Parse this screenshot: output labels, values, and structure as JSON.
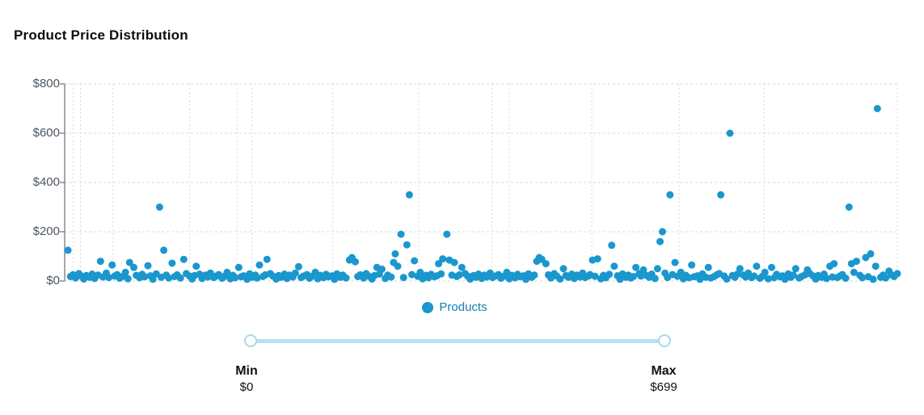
{
  "title": "Product Price Distribution",
  "legend": {
    "label": "Products"
  },
  "slider": {
    "min_label": "Min",
    "min_value": "$0",
    "max_label": "Max",
    "max_value": "$699"
  },
  "colors": {
    "point": "#1a97cd",
    "legend_text": "#147fb5",
    "slider_track": "#b7e1f2",
    "slider_handle_border": "#a9d9ec",
    "axis_line": "#858c92",
    "grid_line": "#d9d9d9",
    "tick_label": "#4a5560",
    "title_text": "#0d0d0d"
  },
  "chart_data": {
    "type": "scatter",
    "title": "Product Price Distribution",
    "series_name": "Products",
    "xlabel": "",
    "ylabel": "",
    "ylim": [
      0,
      800
    ],
    "y_tick_labels": [
      "$800",
      "$600",
      "$400",
      "$200",
      "$0"
    ],
    "y_tick_values": [
      800,
      600,
      400,
      200,
      0
    ],
    "legend_position": "bottom-center",
    "grid": true,
    "x_unit": "percent_of_plot_width",
    "x_gridlines_percent": [
      1.0,
      1.9,
      5.8,
      15.0,
      20.7,
      22.5,
      32.2,
      42.5,
      51.3,
      53.4,
      63.3,
      73.8,
      84.0,
      100.0
    ],
    "points": [
      [
        0.4,
        125
      ],
      [
        0.7,
        18
      ],
      [
        1.0,
        25
      ],
      [
        1.3,
        12
      ],
      [
        1.7,
        30
      ],
      [
        2.0,
        20
      ],
      [
        2.3,
        8
      ],
      [
        2.6,
        22
      ],
      [
        3.0,
        15
      ],
      [
        3.3,
        28
      ],
      [
        3.6,
        10
      ],
      [
        4.0,
        24
      ],
      [
        4.3,
        80
      ],
      [
        4.6,
        16
      ],
      [
        5.0,
        32
      ],
      [
        5.3,
        14
      ],
      [
        5.7,
        65
      ],
      [
        6.0,
        20
      ],
      [
        6.3,
        26
      ],
      [
        6.6,
        11
      ],
      [
        7.0,
        19
      ],
      [
        7.3,
        35
      ],
      [
        7.6,
        9
      ],
      [
        7.8,
        75
      ],
      [
        8.3,
        55
      ],
      [
        8.6,
        23
      ],
      [
        9.0,
        13
      ],
      [
        9.3,
        27
      ],
      [
        9.6,
        17
      ],
      [
        10.0,
        62
      ],
      [
        10.3,
        21
      ],
      [
        10.6,
        7
      ],
      [
        11.0,
        29
      ],
      [
        11.4,
        300
      ],
      [
        11.6,
        15
      ],
      [
        11.9,
        125
      ],
      [
        12.2,
        24
      ],
      [
        12.5,
        12
      ],
      [
        12.9,
        72
      ],
      [
        13.2,
        18
      ],
      [
        13.5,
        25
      ],
      [
        13.9,
        12
      ],
      [
        14.3,
        88
      ],
      [
        14.6,
        30
      ],
      [
        15.0,
        20
      ],
      [
        15.3,
        8
      ],
      [
        15.6,
        22
      ],
      [
        15.8,
        60
      ],
      [
        16.2,
        28
      ],
      [
        16.5,
        10
      ],
      [
        16.9,
        24
      ],
      [
        17.2,
        16
      ],
      [
        17.5,
        32
      ],
      [
        17.9,
        14
      ],
      [
        18.2,
        20
      ],
      [
        18.5,
        26
      ],
      [
        18.9,
        11
      ],
      [
        19.2,
        19
      ],
      [
        19.5,
        35
      ],
      [
        19.9,
        9
      ],
      [
        20.2,
        23
      ],
      [
        20.5,
        13
      ],
      [
        20.9,
        55
      ],
      [
        21.2,
        17
      ],
      [
        21.5,
        21
      ],
      [
        21.9,
        7
      ],
      [
        22.2,
        29
      ],
      [
        22.5,
        15
      ],
      [
        22.9,
        24
      ],
      [
        23.1,
        12
      ],
      [
        23.4,
        65
      ],
      [
        23.8,
        18
      ],
      [
        24.1,
        25
      ],
      [
        24.3,
        88
      ],
      [
        24.7,
        30
      ],
      [
        25.0,
        20
      ],
      [
        25.4,
        8
      ],
      [
        25.7,
        22
      ],
      [
        26.0,
        15
      ],
      [
        26.4,
        28
      ],
      [
        26.7,
        10
      ],
      [
        27.0,
        24
      ],
      [
        27.4,
        16
      ],
      [
        27.7,
        32
      ],
      [
        28.1,
        58
      ],
      [
        28.4,
        14
      ],
      [
        28.7,
        20
      ],
      [
        29.1,
        26
      ],
      [
        29.4,
        11
      ],
      [
        29.7,
        19
      ],
      [
        30.1,
        35
      ],
      [
        30.4,
        9
      ],
      [
        30.7,
        23
      ],
      [
        31.1,
        13
      ],
      [
        31.4,
        27
      ],
      [
        31.7,
        17
      ],
      [
        32.1,
        21
      ],
      [
        32.4,
        7
      ],
      [
        32.7,
        29
      ],
      [
        33.1,
        15
      ],
      [
        33.4,
        24
      ],
      [
        33.8,
        12
      ],
      [
        34.2,
        85
      ],
      [
        34.5,
        95
      ],
      [
        34.9,
        78
      ],
      [
        35.2,
        18
      ],
      [
        35.5,
        25
      ],
      [
        35.9,
        12
      ],
      [
        36.2,
        30
      ],
      [
        36.5,
        20
      ],
      [
        36.9,
        8
      ],
      [
        37.2,
        22
      ],
      [
        37.5,
        55
      ],
      [
        37.8,
        28
      ],
      [
        38.1,
        48
      ],
      [
        38.5,
        10
      ],
      [
        38.8,
        24
      ],
      [
        39.2,
        16
      ],
      [
        39.5,
        75
      ],
      [
        39.7,
        110
      ],
      [
        40.0,
        60
      ],
      [
        40.4,
        190
      ],
      [
        40.7,
        14
      ],
      [
        41.1,
        147
      ],
      [
        41.4,
        350
      ],
      [
        41.7,
        26
      ],
      [
        42.0,
        82
      ],
      [
        42.4,
        19
      ],
      [
        42.7,
        35
      ],
      [
        43.0,
        9
      ],
      [
        43.4,
        23
      ],
      [
        43.7,
        13
      ],
      [
        44.0,
        27
      ],
      [
        44.4,
        17
      ],
      [
        44.7,
        21
      ],
      [
        44.9,
        70
      ],
      [
        45.2,
        29
      ],
      [
        45.4,
        90
      ],
      [
        45.9,
        190
      ],
      [
        46.2,
        85
      ],
      [
        46.5,
        24
      ],
      [
        46.8,
        75
      ],
      [
        47.1,
        18
      ],
      [
        47.4,
        25
      ],
      [
        47.7,
        55
      ],
      [
        48.1,
        30
      ],
      [
        48.4,
        20
      ],
      [
        48.7,
        8
      ],
      [
        49.1,
        22
      ],
      [
        49.4,
        15
      ],
      [
        49.7,
        28
      ],
      [
        50.1,
        10
      ],
      [
        50.4,
        24
      ],
      [
        50.7,
        16
      ],
      [
        51.1,
        32
      ],
      [
        51.4,
        14
      ],
      [
        51.7,
        20
      ],
      [
        52.1,
        26
      ],
      [
        52.4,
        11
      ],
      [
        52.7,
        19
      ],
      [
        53.1,
        35
      ],
      [
        53.4,
        9
      ],
      [
        53.7,
        23
      ],
      [
        54.1,
        13
      ],
      [
        54.4,
        27
      ],
      [
        54.7,
        17
      ],
      [
        55.1,
        21
      ],
      [
        55.4,
        7
      ],
      [
        55.7,
        29
      ],
      [
        56.1,
        15
      ],
      [
        56.4,
        24
      ],
      [
        56.7,
        80
      ],
      [
        57.0,
        95
      ],
      [
        57.3,
        88
      ],
      [
        57.8,
        70
      ],
      [
        58.1,
        25
      ],
      [
        58.4,
        12
      ],
      [
        58.8,
        30
      ],
      [
        59.1,
        20
      ],
      [
        59.5,
        8
      ],
      [
        59.9,
        50
      ],
      [
        60.2,
        22
      ],
      [
        60.5,
        15
      ],
      [
        60.9,
        28
      ],
      [
        61.2,
        10
      ],
      [
        61.5,
        24
      ],
      [
        61.9,
        16
      ],
      [
        62.2,
        32
      ],
      [
        62.5,
        14
      ],
      [
        62.9,
        20
      ],
      [
        63.1,
        26
      ],
      [
        63.4,
        85
      ],
      [
        63.7,
        19
      ],
      [
        64.0,
        90
      ],
      [
        64.4,
        9
      ],
      [
        64.7,
        23
      ],
      [
        65.0,
        13
      ],
      [
        65.4,
        27
      ],
      [
        65.7,
        145
      ],
      [
        66.0,
        60
      ],
      [
        66.4,
        21
      ],
      [
        66.7,
        7
      ],
      [
        67.0,
        29
      ],
      [
        67.4,
        15
      ],
      [
        67.7,
        24
      ],
      [
        68.0,
        12
      ],
      [
        68.3,
        18
      ],
      [
        68.6,
        55
      ],
      [
        69.0,
        30
      ],
      [
        69.2,
        20
      ],
      [
        69.5,
        45
      ],
      [
        69.9,
        22
      ],
      [
        70.2,
        15
      ],
      [
        70.5,
        28
      ],
      [
        70.9,
        10
      ],
      [
        71.2,
        50
      ],
      [
        71.5,
        160
      ],
      [
        71.8,
        200
      ],
      [
        72.1,
        32
      ],
      [
        72.4,
        14
      ],
      [
        72.7,
        350
      ],
      [
        73.0,
        26
      ],
      [
        73.3,
        75
      ],
      [
        73.6,
        19
      ],
      [
        74.0,
        35
      ],
      [
        74.3,
        9
      ],
      [
        74.6,
        23
      ],
      [
        75.0,
        13
      ],
      [
        75.3,
        65
      ],
      [
        75.6,
        17
      ],
      [
        76.0,
        21
      ],
      [
        76.3,
        7
      ],
      [
        76.6,
        29
      ],
      [
        77.0,
        15
      ],
      [
        77.3,
        55
      ],
      [
        77.6,
        12
      ],
      [
        78.0,
        18
      ],
      [
        78.3,
        25
      ],
      [
        78.6,
        30
      ],
      [
        78.8,
        350
      ],
      [
        79.2,
        20
      ],
      [
        79.5,
        8
      ],
      [
        79.9,
        600
      ],
      [
        80.2,
        22
      ],
      [
        80.5,
        15
      ],
      [
        80.8,
        28
      ],
      [
        81.1,
        50
      ],
      [
        81.5,
        24
      ],
      [
        81.8,
        16
      ],
      [
        82.1,
        32
      ],
      [
        82.5,
        14
      ],
      [
        82.8,
        20
      ],
      [
        83.1,
        60
      ],
      [
        83.5,
        11
      ],
      [
        83.8,
        19
      ],
      [
        84.1,
        35
      ],
      [
        84.5,
        9
      ],
      [
        84.9,
        55
      ],
      [
        85.2,
        13
      ],
      [
        85.5,
        27
      ],
      [
        85.9,
        17
      ],
      [
        86.2,
        21
      ],
      [
        86.5,
        7
      ],
      [
        86.9,
        29
      ],
      [
        87.2,
        15
      ],
      [
        87.5,
        24
      ],
      [
        87.8,
        50
      ],
      [
        88.2,
        12
      ],
      [
        88.5,
        18
      ],
      [
        88.9,
        25
      ],
      [
        89.2,
        45
      ],
      [
        89.5,
        30
      ],
      [
        89.9,
        20
      ],
      [
        90.2,
        8
      ],
      [
        90.5,
        22
      ],
      [
        90.9,
        15
      ],
      [
        91.2,
        28
      ],
      [
        91.5,
        10
      ],
      [
        91.9,
        60
      ],
      [
        92.2,
        16
      ],
      [
        92.4,
        70
      ],
      [
        92.8,
        14
      ],
      [
        93.1,
        20
      ],
      [
        93.4,
        26
      ],
      [
        93.8,
        11
      ],
      [
        94.2,
        300
      ],
      [
        94.5,
        70
      ],
      [
        94.8,
        35
      ],
      [
        95.1,
        80
      ],
      [
        95.5,
        23
      ],
      [
        95.8,
        13
      ],
      [
        96.2,
        95
      ],
      [
        96.5,
        17
      ],
      [
        96.8,
        110
      ],
      [
        97.1,
        7
      ],
      [
        97.4,
        60
      ],
      [
        97.6,
        700
      ],
      [
        98.0,
        15
      ],
      [
        98.3,
        24
      ],
      [
        98.6,
        12
      ],
      [
        99.0,
        40
      ],
      [
        99.3,
        25
      ],
      [
        99.6,
        18
      ],
      [
        100.0,
        30
      ]
    ]
  }
}
